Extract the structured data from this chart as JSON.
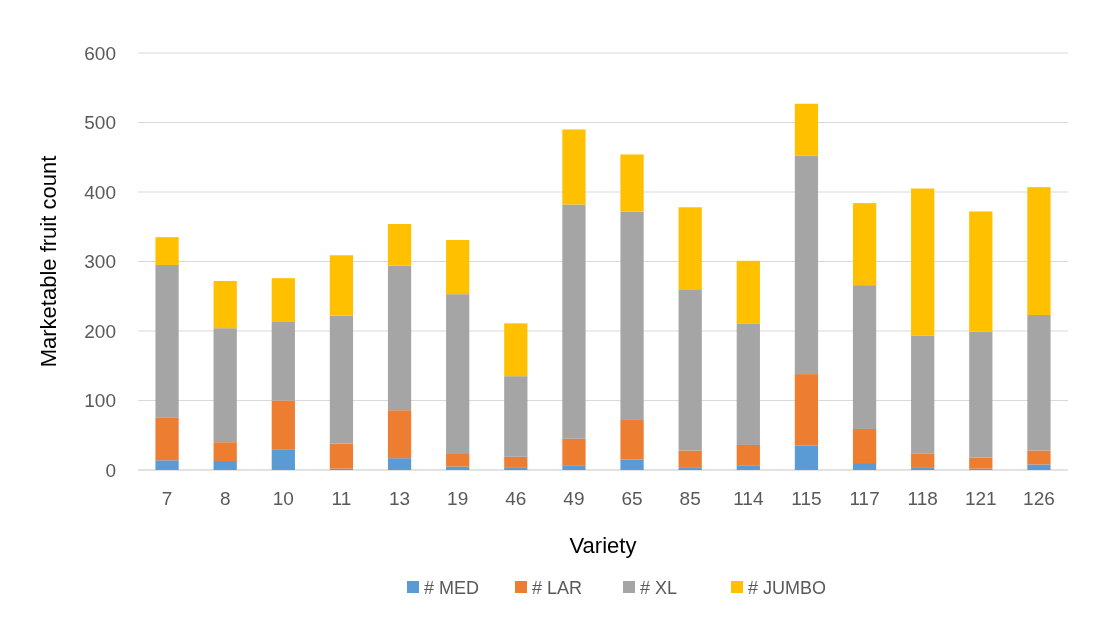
{
  "chart_data": {
    "type": "bar",
    "stacked": true,
    "xlabel": "Variety",
    "ylabel": "Marketable fruit count",
    "categories": [
      "7",
      "8",
      "10",
      "11",
      "13",
      "19",
      "46",
      "49",
      "65",
      "85",
      "114",
      "115",
      "117",
      "118",
      "121",
      "126"
    ],
    "series": [
      {
        "name": "# MED",
        "color": "#5b9bd5",
        "values": [
          14,
          13,
          29,
          2,
          17,
          5,
          4,
          6,
          15,
          4,
          6,
          35,
          10,
          4,
          2,
          8
        ]
      },
      {
        "name": "# LAR",
        "color": "#ed7d31",
        "values": [
          61,
          27,
          71,
          36,
          69,
          18,
          15,
          39,
          57,
          24,
          30,
          103,
          49,
          20,
          16,
          20
        ]
      },
      {
        "name": "# XL",
        "color": "#a5a5a5",
        "values": [
          220,
          164,
          113,
          184,
          208,
          230,
          116,
          337,
          300,
          231,
          175,
          314,
          207,
          169,
          181,
          195
        ]
      },
      {
        "name": "# JUMBO",
        "color": "#ffc000",
        "values": [
          40,
          68,
          63,
          87,
          60,
          78,
          76,
          108,
          82,
          119,
          90,
          75,
          118,
          212,
          173,
          184
        ]
      }
    ],
    "ylim": [
      0,
      600
    ],
    "yticks": [
      0,
      100,
      200,
      300,
      400,
      500,
      600
    ],
    "grid": "y",
    "legend": "bottom"
  }
}
